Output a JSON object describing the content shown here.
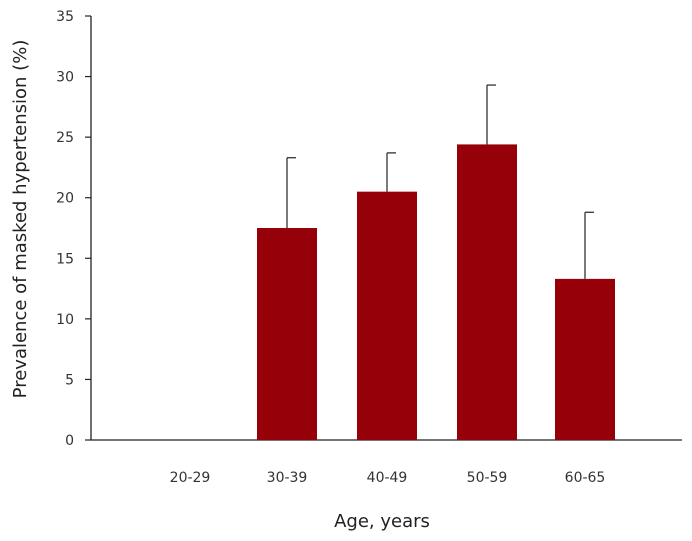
{
  "chart_data": {
    "type": "bar",
    "xlabel": "Age, years",
    "ylabel": "Prevalence of masked hypertension (%)",
    "categories": [
      "20-29",
      "30-39",
      "40-49",
      "50-59",
      "60-65"
    ],
    "values": [
      0,
      17.5,
      20.5,
      24.4,
      13.3
    ],
    "error_upper": [
      0,
      23.3,
      23.7,
      29.3,
      18.8
    ],
    "ylim": [
      0,
      35
    ],
    "yticks": [
      0,
      5,
      10,
      15,
      20,
      25,
      30,
      35
    ],
    "grid": false,
    "bar_color": "#960008"
  }
}
